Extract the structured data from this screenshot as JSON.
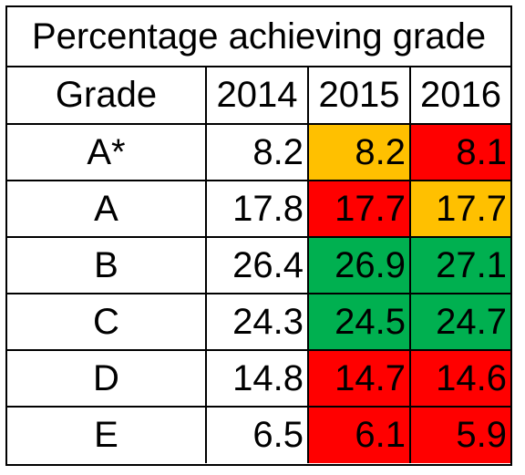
{
  "title": "Percentage achieving grade",
  "headers": [
    "Grade",
    "2014",
    "2015",
    "2016"
  ],
  "rows": [
    {
      "grade": "A*",
      "values": [
        "8.2",
        "8.2",
        "8.1"
      ],
      "colors": [
        "#ffffff",
        "#ffc000",
        "#ff0000"
      ]
    },
    {
      "grade": "A",
      "values": [
        "17.8",
        "17.7",
        "17.7"
      ],
      "colors": [
        "#ffffff",
        "#ff0000",
        "#ffc000"
      ]
    },
    {
      "grade": "B",
      "values": [
        "26.4",
        "26.9",
        "27.1"
      ],
      "colors": [
        "#ffffff",
        "#00b050",
        "#00b050"
      ]
    },
    {
      "grade": "C",
      "values": [
        "24.3",
        "24.5",
        "24.7"
      ],
      "colors": [
        "#ffffff",
        "#00b050",
        "#00b050"
      ]
    },
    {
      "grade": "D",
      "values": [
        "14.8",
        "14.7",
        "14.6"
      ],
      "colors": [
        "#ffffff",
        "#ff0000",
        "#ff0000"
      ]
    },
    {
      "grade": "E",
      "values": [
        "6.5",
        "6.1",
        "5.9"
      ],
      "colors": [
        "#ffffff",
        "#ff0000",
        "#ff0000"
      ]
    }
  ]
}
